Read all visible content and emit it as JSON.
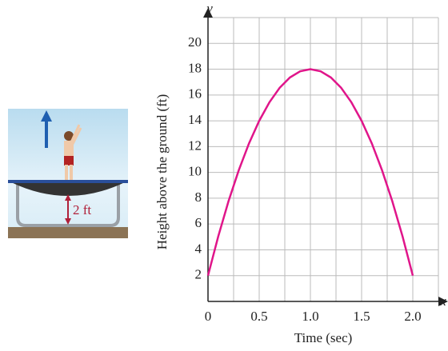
{
  "chart_data": {
    "type": "line",
    "illustration_label": "2 ft",
    "x_label": "Time (sec)",
    "y_label": "Height above the ground (ft)",
    "x_axis_name": "x",
    "y_axis_name": "y",
    "x": [
      0,
      0.1,
      0.2,
      0.3,
      0.4,
      0.5,
      0.6,
      0.7,
      0.8,
      0.9,
      1.0,
      1.1,
      1.2,
      1.3,
      1.4,
      1.5,
      1.6,
      1.7,
      1.8,
      1.9,
      2.0
    ],
    "series": [
      {
        "color": "#e0158a",
        "values": [
          2,
          5.04,
          7.76,
          10.16,
          12.24,
          14,
          15.44,
          16.56,
          17.36,
          17.84,
          18,
          17.84,
          17.36,
          16.56,
          15.44,
          14,
          12.24,
          10.16,
          7.76,
          5.04,
          2
        ]
      }
    ],
    "xlim": [
      0,
      2.25
    ],
    "ylim": [
      0,
      22
    ],
    "xticks": [
      0,
      0.5,
      {
        "value": 1,
        "label": "1.0"
      },
      1.5,
      {
        "value": 2,
        "label": "2.0"
      }
    ],
    "x_minor_ticks": [
      0.25,
      0.75,
      1.25,
      1.75
    ],
    "yticks": [
      2,
      4,
      6,
      8,
      10,
      12,
      14,
      16,
      18,
      20
    ],
    "grid": true
  }
}
